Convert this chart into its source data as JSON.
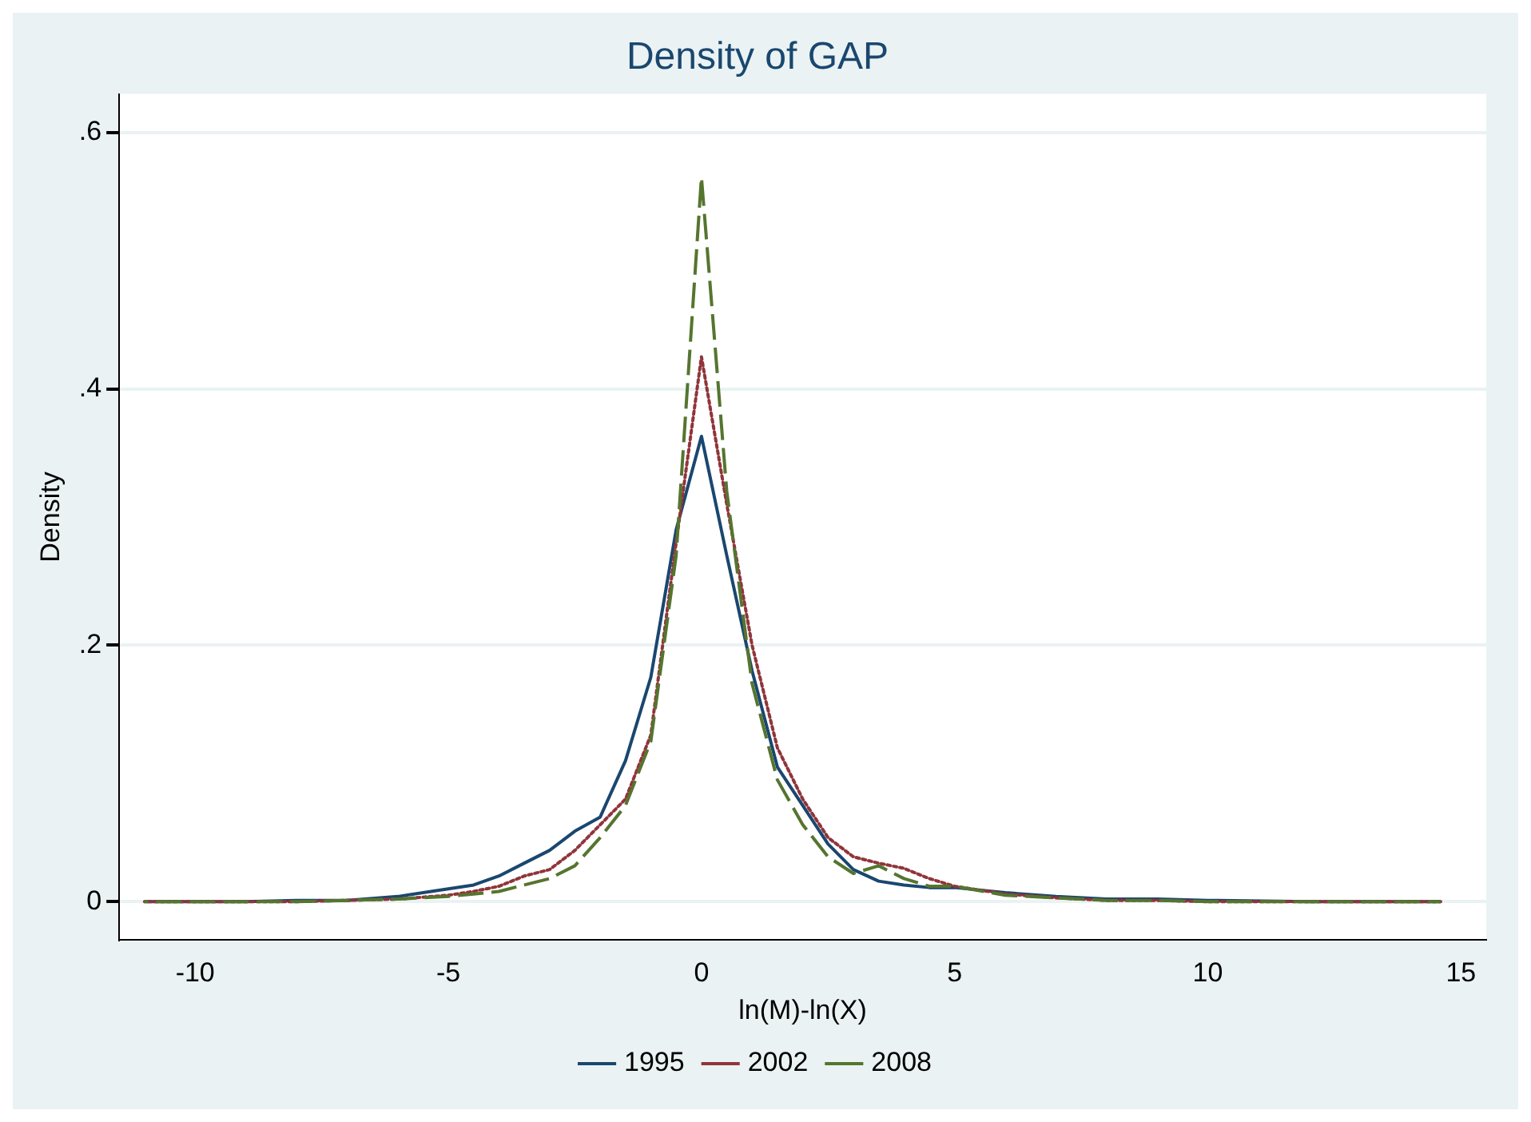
{
  "chart_data": {
    "type": "line",
    "title": "Density of GAP",
    "xlabel": "ln(M)-ln(X)",
    "ylabel": "Density",
    "x": [
      -11,
      -10,
      -9,
      -8,
      -7,
      -6,
      -5,
      -4.5,
      -4,
      -3.5,
      -3,
      -2.5,
      -2,
      -1.5,
      -1,
      -0.5,
      0,
      0.5,
      1,
      1.5,
      2,
      2.5,
      3,
      3.5,
      4,
      4.5,
      5,
      6,
      7,
      8,
      9,
      10,
      12,
      14.6
    ],
    "series": [
      {
        "name": "1995",
        "color": "#1a476f",
        "line_style": "solid",
        "values": [
          0,
          0,
          0,
          0.001,
          0.001,
          0.004,
          0.01,
          0.013,
          0.02,
          0.03,
          0.04,
          0.055,
          0.066,
          0.11,
          0.175,
          0.29,
          0.363,
          0.27,
          0.18,
          0.105,
          0.075,
          0.045,
          0.025,
          0.016,
          0.013,
          0.011,
          0.011,
          0.007,
          0.004,
          0.002,
          0.002,
          0.001,
          0,
          0
        ]
      },
      {
        "name": "2002",
        "color": "#90353b",
        "line_style": "dotted",
        "values": [
          0,
          0,
          0,
          0,
          0.001,
          0.002,
          0.005,
          0.008,
          0.012,
          0.02,
          0.025,
          0.04,
          0.06,
          0.08,
          0.13,
          0.28,
          0.425,
          0.31,
          0.2,
          0.12,
          0.08,
          0.05,
          0.035,
          0.03,
          0.026,
          0.018,
          0.012,
          0.006,
          0.003,
          0.001,
          0.001,
          0,
          0,
          0
        ]
      },
      {
        "name": "2008",
        "color": "#55752f",
        "line_style": "dashed",
        "values": [
          0,
          0,
          0,
          0,
          0.001,
          0.002,
          0.004,
          0.006,
          0.008,
          0.013,
          0.018,
          0.028,
          0.05,
          0.075,
          0.125,
          0.27,
          0.565,
          0.32,
          0.17,
          0.095,
          0.06,
          0.035,
          0.022,
          0.028,
          0.018,
          0.012,
          0.012,
          0.005,
          0.003,
          0.001,
          0.001,
          0,
          0,
          0
        ]
      }
    ],
    "xlim": [
      -11.5,
      15.5
    ],
    "xticks": [
      -10,
      -5,
      0,
      5,
      10,
      15
    ],
    "ylim": [
      -0.03,
      0.63
    ],
    "yticks": [
      0,
      {
        "value": 0.2,
        "label": ".2"
      },
      {
        "value": 0.4,
        "label": ".4"
      },
      {
        "value": 0.6,
        "label": ".6"
      }
    ],
    "grid": "y",
    "legend": "bottom",
    "marker": "none"
  }
}
